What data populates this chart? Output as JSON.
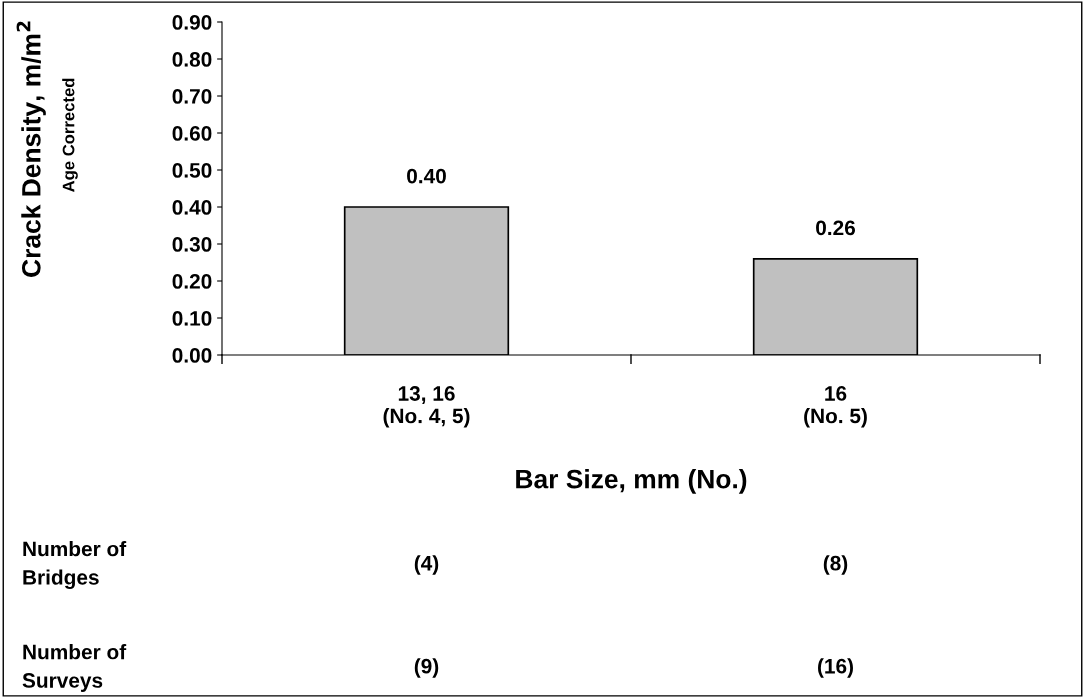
{
  "chart_data": {
    "type": "bar",
    "ylabel": "Crack Density, m/m$^{2}$",
    "xlabel": "Bar Size, mm (No.)",
    "categories": [
      "13, 16\n(No. 4, 5)",
      "16\n(No. 5)"
    ],
    "values": [
      0.4,
      0.26
    ],
    "value_labels": [
      "0.40",
      "0.26"
    ],
    "color": "#c0c0c0",
    "ylim": [
      0,
      0.9
    ],
    "yticks": [
      {
        "value": 0,
        "label": "0.00"
      },
      {
        "value": 0.1,
        "label": "0.10"
      },
      {
        "value": 0.2,
        "label": "0.20"
      },
      {
        "value": 0.3,
        "label": "0.30"
      },
      {
        "value": 0.4,
        "label": "0.40"
      },
      {
        "value": 0.5,
        "label": "0.50"
      },
      {
        "value": 0.6,
        "label": "0.60"
      },
      {
        "value": 0.7,
        "label": "0.70"
      },
      {
        "value": 0.8,
        "label": "0.80"
      },
      {
        "value": 0.9,
        "label": "0.90"
      }
    ],
    "grid": false,
    "legend": false,
    "annotations": [
      "Age Corrected",
      "Number of\nBridges",
      "(4)",
      "(8)",
      "Number of\nSurveys",
      "(9)",
      "(16)"
    ]
  }
}
